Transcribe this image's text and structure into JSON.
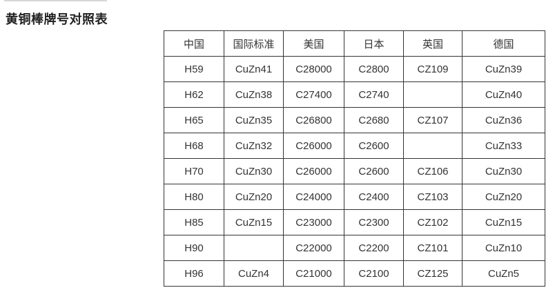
{
  "page": {
    "title": "黄铜棒牌号对照表"
  },
  "colors": {
    "background": "#ffffff",
    "title_text": "#222222",
    "cell_text": "#333333",
    "table_border": "#333333"
  },
  "table": {
    "headers": [
      "中国",
      "国际标准",
      "美国",
      "日本",
      "英国",
      "德国"
    ],
    "rows": [
      [
        "H59",
        "CuZn41",
        "C28000",
        "C2800",
        "CZ109",
        "CuZn39"
      ],
      [
        "H62",
        "CuZn38",
        "C27400",
        "C2740",
        "",
        "CuZn40"
      ],
      [
        "H65",
        "CuZn35",
        "C26800",
        "C2680",
        "CZ107",
        "CuZn36"
      ],
      [
        "H68",
        "CuZn32",
        "C26000",
        "C2600",
        "",
        "CuZn33"
      ],
      [
        "H70",
        "CuZn30",
        "C26000",
        "C2600",
        "CZ106",
        "CuZn30"
      ],
      [
        "H80",
        "CuZn20",
        "C24000",
        "C2400",
        "CZ103",
        "CuZn20"
      ],
      [
        "H85",
        "CuZn15",
        "C23000",
        "C2300",
        "CZ102",
        "CuZn15"
      ],
      [
        "H90",
        "",
        "C22000",
        "C2200",
        "CZ101",
        "CuZn10"
      ],
      [
        "H96",
        "CuZn4",
        "C21000",
        "C2100",
        "CZ125",
        "CuZn5"
      ]
    ]
  }
}
